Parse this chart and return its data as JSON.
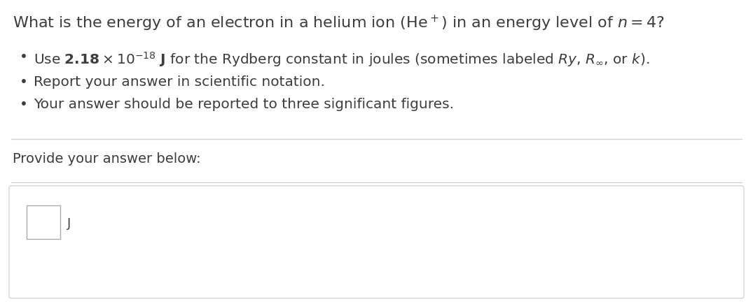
{
  "bg_color": "#ffffff",
  "text_color": "#3d3d3d",
  "separator_color": "#d0d0d0",
  "box_border_color": "#aaaaaa",
  "title_line": "What is the energy of an electron in a helium ion $(\\mathrm{He}^+)$ in an energy level of $n = 4$?",
  "bullet1": "Use $\\mathbf{2.18} \\times 10^{-18}$ $\\mathbf{J}$ for the Rydberg constant in joules (sometimes labeled $\\mathit{Ry}$, $\\mathit{R}_{\\infty}$, or $\\mathit{k}$).",
  "bullet2": "Report your answer in scientific notation.",
  "bullet3": "Your answer should be reported to three significant figures.",
  "provide_text": "Provide your answer below:",
  "unit_label": "J",
  "font_size_title": 16,
  "font_size_bullet": 14.5,
  "font_size_provide": 14,
  "font_size_unit": 13
}
